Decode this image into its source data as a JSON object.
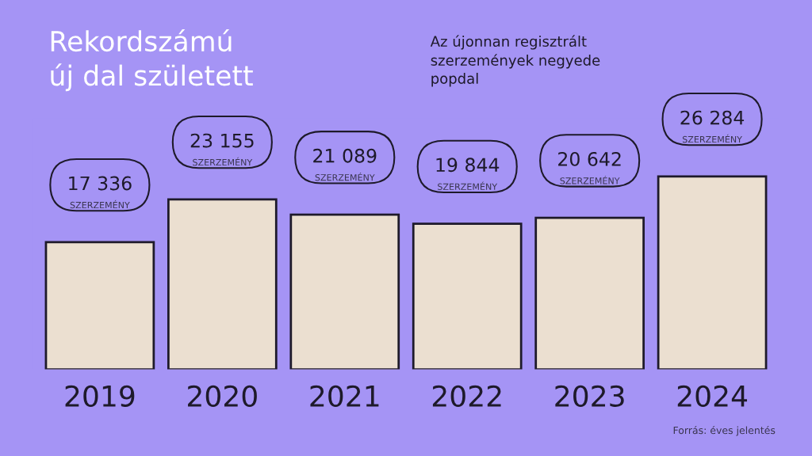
{
  "chart_data": {
    "type": "bar",
    "title": "Rekordszámú\núj dal született",
    "subtitle": "Az újonnan regisztrált\nszerzemények negyede\npopdal",
    "categories": [
      "2019",
      "2020",
      "2021",
      "2022",
      "2023",
      "2024"
    ],
    "values": [
      17336,
      23155,
      21089,
      19844,
      20642,
      26284
    ],
    "value_labels": [
      "17 336",
      "23 155",
      "21 089",
      "19 844",
      "20 642",
      "26 284"
    ],
    "color": "#ebdfd0",
    "tick_labels": "x",
    "grid": false,
    "legend": false,
    "annotations": [
      "SZERZEMÉNY",
      "SZERZEMÉNY",
      "SZERZEMÉNY",
      "SZERZEMÉNY",
      "SZERZEMÉNY",
      "SZERZEMÉNY",
      "Forrás: éves jelentés"
    ]
  }
}
